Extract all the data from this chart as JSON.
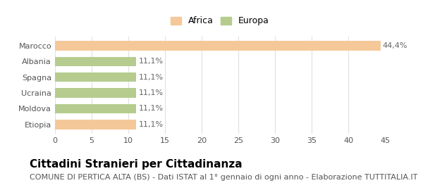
{
  "categories": [
    "Etiopia",
    "Moldova",
    "Ucraina",
    "Spagna",
    "Albania",
    "Marocco"
  ],
  "values": [
    11.1,
    11.1,
    11.1,
    11.1,
    11.1,
    44.4
  ],
  "labels": [
    "11,1%",
    "11,1%",
    "11,1%",
    "11,1%",
    "11,1%",
    "44,4%"
  ],
  "bar_colors": [
    "#f5c89a",
    "#b5cc8e",
    "#b5cc8e",
    "#b5cc8e",
    "#b5cc8e",
    "#f5c89a"
  ],
  "legend": [
    {
      "label": "Africa",
      "color": "#f5c89a"
    },
    {
      "label": "Europa",
      "color": "#b5cc8e"
    }
  ],
  "xlim": [
    0,
    45
  ],
  "xticks": [
    0,
    5,
    10,
    15,
    20,
    25,
    30,
    35,
    40,
    45
  ],
  "title": "Cittadini Stranieri per Cittadinanza",
  "subtitle": "COMUNE DI PERTICA ALTA (BS) - Dati ISTAT al 1° gennaio di ogni anno - Elaborazione TUTTITALIA.IT",
  "title_fontsize": 11,
  "subtitle_fontsize": 8,
  "label_fontsize": 8,
  "tick_fontsize": 8,
  "background_color": "#ffffff",
  "grid_color": "#e0e0e0"
}
